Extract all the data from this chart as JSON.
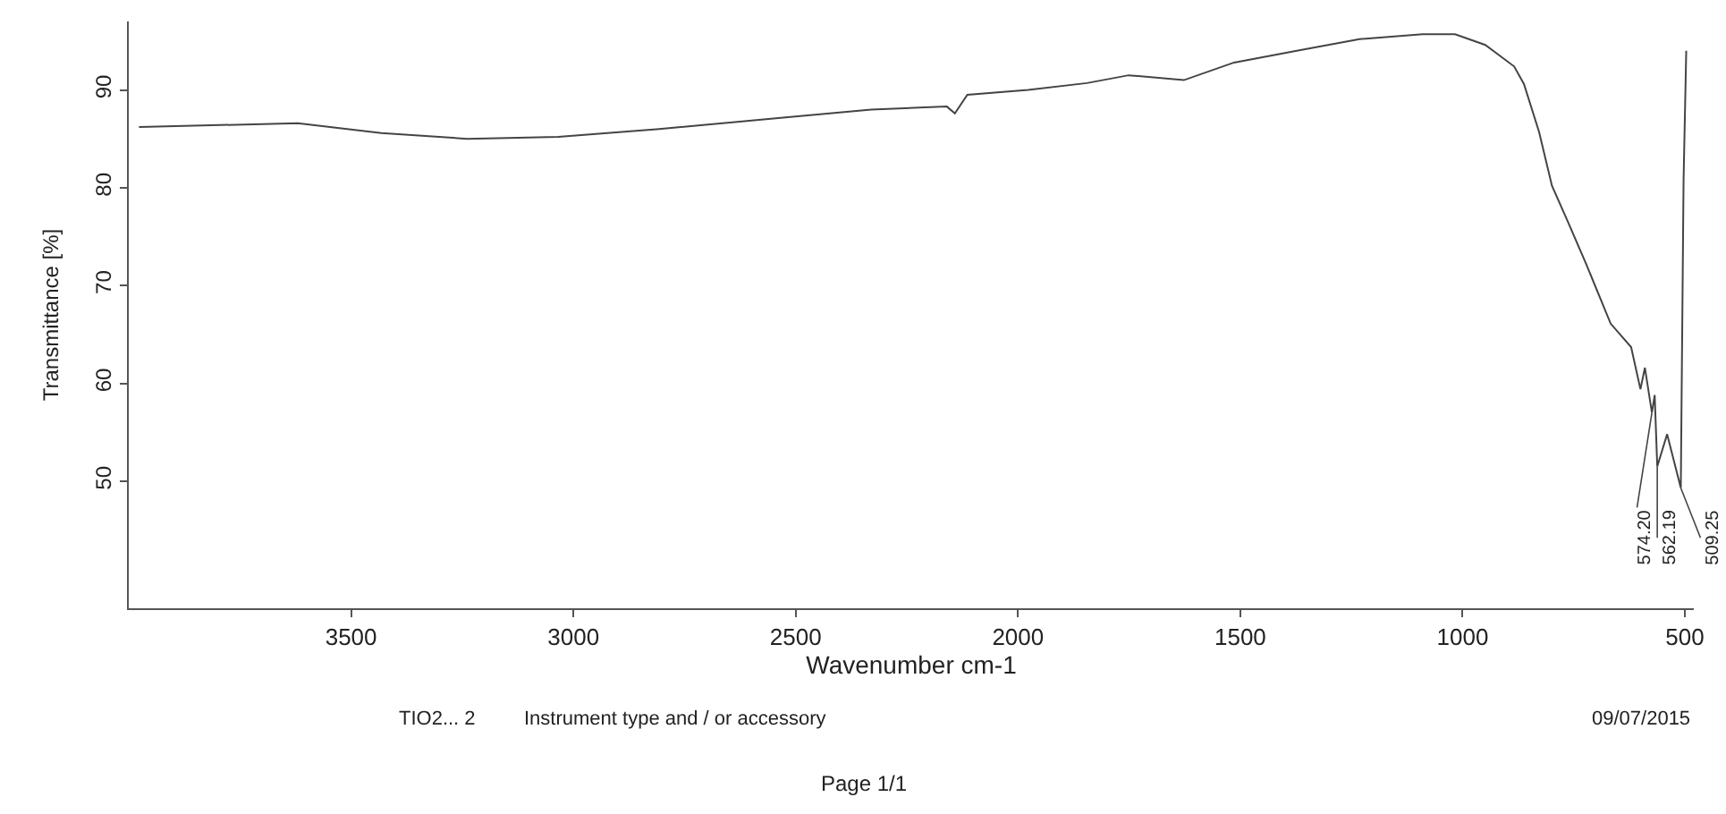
{
  "chart_data": {
    "type": "line",
    "xlabel": "Wavenumber cm-1",
    "ylabel": "Transmittance [%]",
    "x": [
      3977,
      3620,
      3432,
      3239,
      3034,
      2807,
      2523,
      2330,
      2160,
      2142,
      2114,
      1977,
      1845,
      1751,
      1627,
      1514,
      1373,
      1232,
      1090,
      1017,
      949,
      884,
      862,
      828,
      799,
      763,
      723,
      667,
      621,
      600,
      590,
      574.2,
      568,
      562.19,
      540,
      509.25,
      503,
      497
    ],
    "series": [
      {
        "color": "#444444",
        "values": [
          86.2,
          86.6,
          85.6,
          85.0,
          85.2,
          86.0,
          87.2,
          88.0,
          88.3,
          87.6,
          89.5,
          90.0,
          90.7,
          91.5,
          91.0,
          92.8,
          94.0,
          95.2,
          95.7,
          95.7,
          94.6,
          92.4,
          90.6,
          85.7,
          80.2,
          76.5,
          72.3,
          66.1,
          63.7,
          59.4,
          61.6,
          57.0,
          58.8,
          51.5,
          54.8,
          49.3,
          80.8,
          94.0
        ]
      }
    ],
    "xlim": [
      4000,
      480
    ],
    "ylim": [
      37,
      97
    ],
    "xticks": [
      3500,
      3000,
      2500,
      2000,
      1500,
      1000,
      500
    ],
    "yticks": [
      50,
      60,
      70,
      80,
      90
    ],
    "marker": "none",
    "line_style": "solid",
    "annotations": [
      {
        "text": "574.20",
        "x": 574.2,
        "y": 57.0
      },
      {
        "text": "562.19",
        "x": 562.19,
        "y": 51.5
      },
      {
        "text": "509.25",
        "x": 509.25,
        "y": 49.3
      },
      "TIO2... 2",
      "Instrument type and / or accessory",
      "09/07/2015",
      "Page 1/1"
    ]
  }
}
